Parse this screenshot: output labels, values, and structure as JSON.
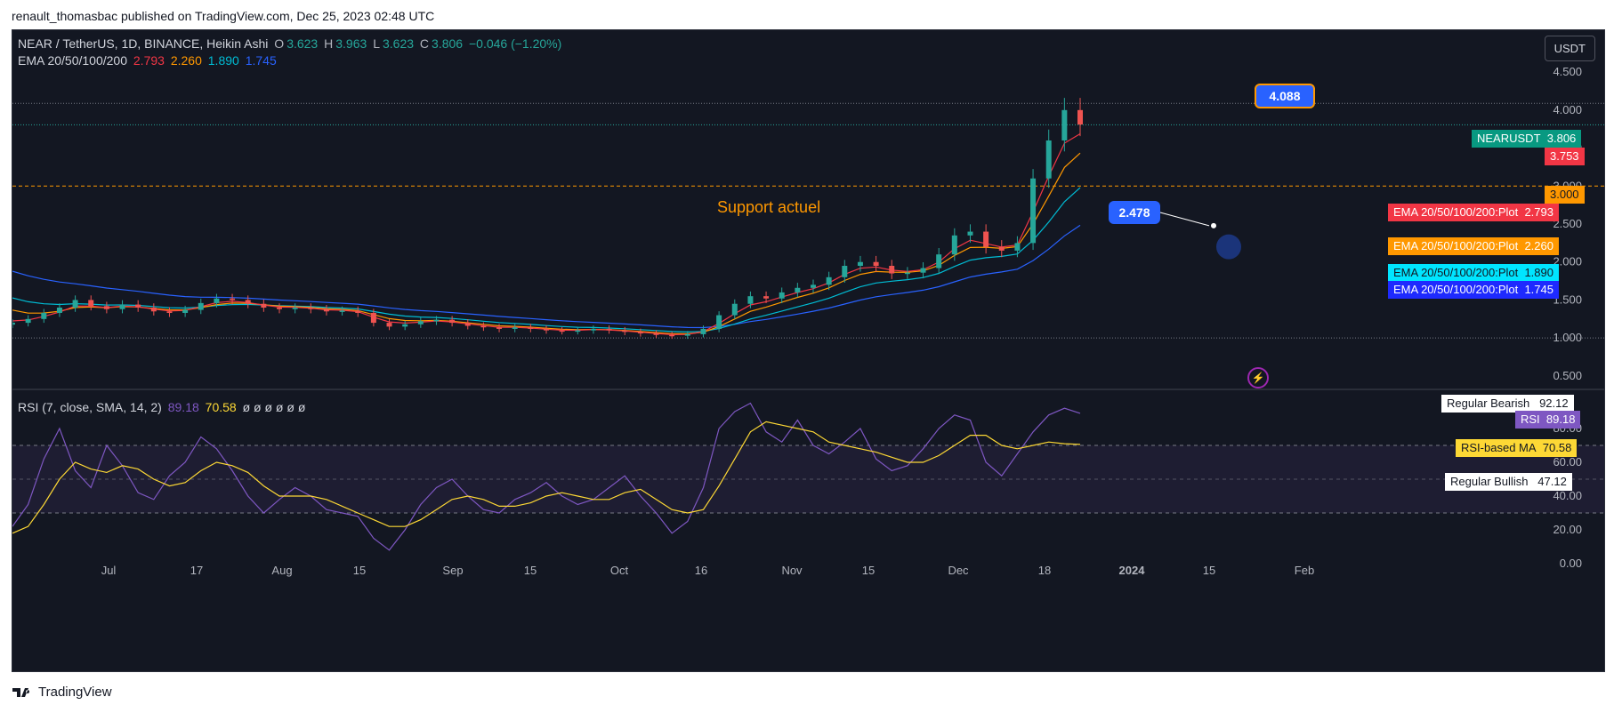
{
  "header": {
    "published_text": "renault_thomasbac published on TradingView.com, Dec 25, 2023 02:48 UTC"
  },
  "main_legend": {
    "symbol": "NEAR / TetherUS, 1D, BINANCE, Heikin Ashi",
    "o_label": "O",
    "o_value": "3.623",
    "h_label": "H",
    "h_value": "3.963",
    "l_label": "L",
    "l_value": "3.623",
    "c_label": "C",
    "c_value": "3.806",
    "change": "−0.046 (−1.20%)"
  },
  "ema_legend": {
    "name": "EMA 20/50/100/200",
    "v20": "2.793",
    "v50": "2.260",
    "v100": "1.890",
    "v200": "1.745"
  },
  "rsi_legend": {
    "name": "RSI (7, close, SMA, 14, 2)",
    "rsi": "89.18",
    "ma": "70.58",
    "empties": "ø  ø  ø  ø  ø  ø"
  },
  "currency_button": "USDT",
  "price_axis": [
    "4.500",
    "4.000",
    "3.500",
    "3.000",
    "2.500",
    "2.000",
    "1.500",
    "1.000",
    "0.500"
  ],
  "rsi_axis": [
    "80.00",
    "60.00",
    "40.00",
    "20.00",
    "0.00"
  ],
  "time_axis": [
    "Jul",
    "17",
    "Aug",
    "15",
    "Sep",
    "15",
    "Oct",
    "16",
    "Nov",
    "15",
    "Dec",
    "18",
    "2024",
    "15",
    "Feb"
  ],
  "price_labels": {
    "symbol_name": "NEARUSDT",
    "symbol_price": "3.806",
    "low_price": "3.753",
    "support_price": "3.000",
    "ema20_name": "EMA 20/50/100/200:Plot",
    "ema20_val": "2.793",
    "ema50_name": "EMA 20/50/100/200:Plot",
    "ema50_val": "2.260",
    "ema100_name": "EMA 20/50/100/200:Plot",
    "ema100_val": "1.890",
    "ema200_name": "EMA 20/50/100/200:Plot",
    "ema200_val": "1.745"
  },
  "rsi_labels": {
    "bearish_name": "Regular Bearish",
    "bearish_val": "92.12",
    "rsi_name": "RSI",
    "rsi_val": "89.18",
    "ma_name": "RSI-based MA",
    "ma_val": "70.58",
    "bullish_name": "Regular Bullish",
    "bullish_val": "47.12"
  },
  "annotations": {
    "support_text": "Support actuel",
    "callout_high": "4.088",
    "callout_low": "2.478"
  },
  "footer": {
    "brand": "TradingView"
  },
  "colors": {
    "background": "#131722",
    "up": "#26a69a",
    "down": "#ef5350",
    "ema20": "#f23645",
    "ema50": "#ff9800",
    "ema100": "#00bcd4",
    "ema200": "#2962ff",
    "rsi": "#7e57c2",
    "rsi_ma": "#fdd835",
    "support": "#ff9800"
  },
  "chart_data": {
    "type": "candlestick",
    "symbol": "NEARUSDT",
    "price_series_close": [
      1.2,
      1.25,
      1.33,
      1.4,
      1.5,
      1.42,
      1.38,
      1.44,
      1.4,
      1.35,
      1.33,
      1.37,
      1.46,
      1.52,
      1.5,
      1.45,
      1.4,
      1.38,
      1.4,
      1.38,
      1.35,
      1.36,
      1.33,
      1.2,
      1.15,
      1.18,
      1.22,
      1.24,
      1.2,
      1.16,
      1.14,
      1.12,
      1.14,
      1.12,
      1.1,
      1.09,
      1.1,
      1.12,
      1.1,
      1.08,
      1.06,
      1.04,
      1.03,
      1.05,
      1.12,
      1.3,
      1.45,
      1.55,
      1.52,
      1.6,
      1.66,
      1.7,
      1.8,
      1.95,
      2.0,
      1.95,
      1.85,
      1.86,
      1.92,
      2.1,
      2.35,
      2.4,
      2.2,
      2.15,
      2.25,
      3.1,
      3.6,
      4.0,
      3.81
    ],
    "ema20_last": 2.793,
    "ema50_last": 2.26,
    "ema100_last": 1.89,
    "ema200_last": 1.745,
    "rsi_series": [
      22,
      35,
      62,
      80,
      55,
      45,
      70,
      58,
      42,
      38,
      52,
      60,
      75,
      68,
      55,
      40,
      30,
      38,
      45,
      40,
      32,
      30,
      28,
      15,
      8,
      20,
      35,
      45,
      50,
      40,
      32,
      30,
      38,
      42,
      48,
      40,
      35,
      38,
      45,
      52,
      40,
      30,
      18,
      25,
      45,
      80,
      90,
      95,
      78,
      72,
      85,
      70,
      65,
      72,
      80,
      62,
      55,
      58,
      68,
      80,
      88,
      85,
      60,
      52,
      65,
      78,
      88,
      92,
      89
    ],
    "rsi_ma_series": [
      18,
      22,
      35,
      50,
      60,
      56,
      54,
      58,
      56,
      50,
      46,
      48,
      55,
      60,
      58,
      54,
      46,
      40,
      40,
      40,
      38,
      34,
      30,
      26,
      22,
      22,
      26,
      32,
      38,
      40,
      38,
      34,
      34,
      36,
      40,
      42,
      40,
      38,
      38,
      42,
      44,
      38,
      32,
      30,
      32,
      46,
      62,
      78,
      84,
      82,
      80,
      78,
      72,
      70,
      68,
      66,
      63,
      60,
      60,
      64,
      70,
      76,
      76,
      70,
      68,
      70,
      72,
      71,
      70.58
    ],
    "support_level": 3.0,
    "marked_high": 4.088,
    "marked_low": 2.478,
    "price_range": [
      0.3,
      4.7
    ],
    "rsi_levels": [
      30,
      70
    ]
  }
}
